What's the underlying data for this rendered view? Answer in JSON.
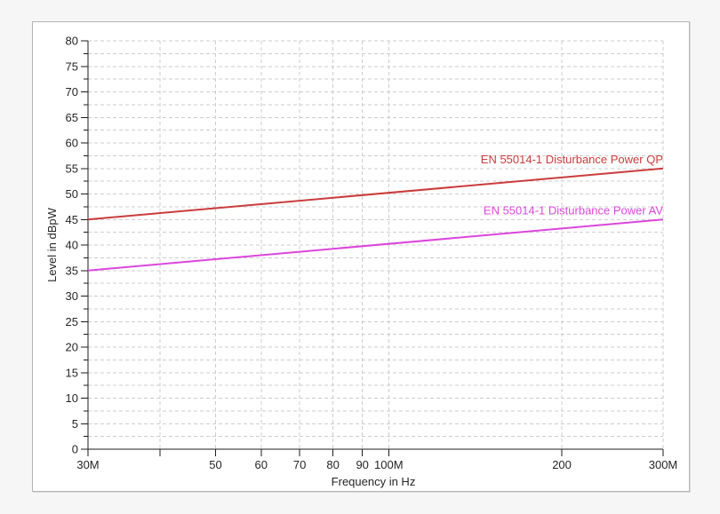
{
  "window": {
    "page_background": "#f6f6f6",
    "frame_background": "#ffffff",
    "frame_border_color": "#b5b5b5"
  },
  "chart_data": {
    "type": "line",
    "title": "",
    "xlabel": "Frequency in Hz",
    "ylabel": "Level in dBpW",
    "x_scale": "log",
    "x_range_mhz": [
      30,
      300
    ],
    "x_ticks_mhz": [
      30,
      40,
      50,
      60,
      70,
      80,
      90,
      100,
      200,
      300
    ],
    "x_tick_labels": [
      "30M",
      "",
      "50",
      "60",
      "70",
      "80",
      "90",
      "100M",
      "200",
      "300M"
    ],
    "ylim": [
      0,
      80
    ],
    "y_major_step": 5,
    "y_minor_step": 2.5,
    "y_tick_labels": [
      "0",
      "5",
      "10",
      "15",
      "20",
      "25",
      "30",
      "35",
      "40",
      "45",
      "50",
      "55",
      "60",
      "65",
      "70",
      "75",
      "80"
    ],
    "grid": true,
    "grid_color": "#cdcdcd",
    "axis_color": "#1c1c1c",
    "legend_position": "labels-above-lines-right-aligned",
    "series": [
      {
        "id": "qp",
        "name": "EN 55014-1 Disturbance Power QP",
        "color": "#cb3c3c",
        "points_mhz_dbpw": [
          [
            30,
            45
          ],
          [
            300,
            55
          ]
        ]
      },
      {
        "id": "av",
        "name": "EN 55014-1 Disturbance Power AV",
        "color": "#dc46dc",
        "points_mhz_dbpw": [
          [
            30,
            35
          ],
          [
            300,
            45
          ]
        ]
      }
    ]
  }
}
